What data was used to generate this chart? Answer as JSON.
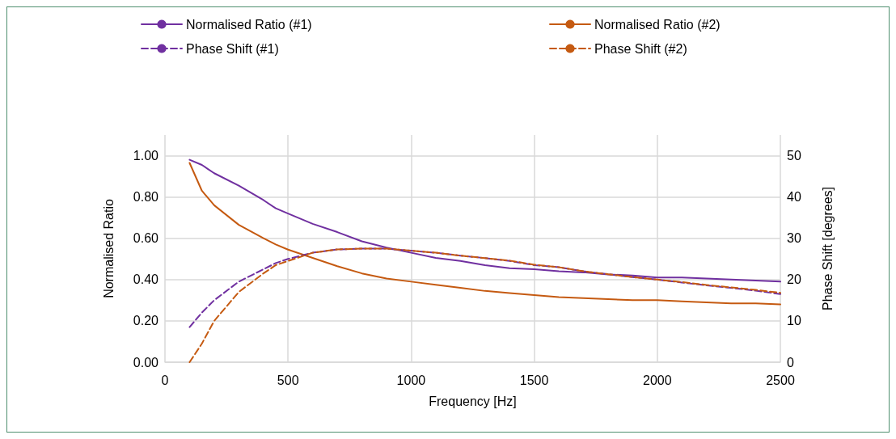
{
  "chart_data": {
    "type": "line",
    "xlabel": "Frequency [Hz]",
    "ylabel": "Normalised Ratio",
    "y2label": "Phase Shift [degrees]",
    "x": [
      100,
      150,
      200,
      300,
      400,
      450,
      500,
      600,
      700,
      800,
      900,
      1000,
      1100,
      1200,
      1300,
      1400,
      1500,
      1600,
      1700,
      1800,
      1900,
      2000,
      2100,
      2200,
      2300,
      2400,
      2500
    ],
    "series": [
      {
        "name": "Normalised Ratio (#1)",
        "color": "#7030a0",
        "line_style": "solid",
        "values": [
          0.98,
          0.955,
          0.915,
          0.855,
          0.785,
          0.745,
          0.72,
          0.67,
          0.63,
          0.585,
          0.555,
          0.53,
          0.505,
          0.49,
          0.47,
          0.455,
          0.45,
          0.44,
          0.435,
          0.425,
          0.42,
          0.41,
          0.41,
          0.405,
          0.4,
          0.395,
          0.39
        ]
      },
      {
        "name": "Normalised Ratio (#2)",
        "color": "#c55a11",
        "line_style": "solid",
        "values": [
          0.965,
          0.83,
          0.76,
          0.665,
          0.6,
          0.57,
          0.545,
          0.505,
          0.465,
          0.43,
          0.405,
          0.39,
          0.375,
          0.36,
          0.345,
          0.335,
          0.325,
          0.315,
          0.31,
          0.305,
          0.3,
          0.3,
          0.295,
          0.29,
          0.285,
          0.285,
          0.28
        ]
      },
      {
        "name": "Phase Shift (#1)",
        "color": "#7030a0",
        "line_style": "dashed",
        "axis": "y2",
        "values": [
          8.5,
          12,
          15,
          19.5,
          22.5,
          24,
          25,
          26.5,
          27.3,
          27.5,
          27.5,
          27,
          26.5,
          25.8,
          25.2,
          24.5,
          23.5,
          23,
          22,
          21.3,
          20.6,
          20,
          19.3,
          18.6,
          18,
          17.3,
          16.5
        ]
      },
      {
        "name": "Phase Shift (#2)",
        "color": "#c55a11",
        "line_style": "dashed",
        "axis": "y2",
        "values": [
          0,
          4.5,
          10,
          17,
          21.5,
          23.5,
          24.5,
          26.5,
          27.3,
          27.5,
          27.5,
          27,
          26.5,
          25.8,
          25.2,
          24.6,
          23.6,
          23,
          22,
          21.3,
          20.6,
          20,
          19.4,
          18.7,
          18.1,
          17.5,
          16.8
        ]
      }
    ],
    "xlim": [
      0,
      2500
    ],
    "xticks": [
      0,
      500,
      1000,
      1500,
      2000,
      2500
    ],
    "ylim": [
      0,
      1.1
    ],
    "yticks": [
      {
        "value": 0,
        "label": "0.00"
      },
      {
        "value": 0.2,
        "label": "0.20"
      },
      {
        "value": 0.4,
        "label": "0.40"
      },
      {
        "value": 0.6,
        "label": "0.60"
      },
      {
        "value": 0.8,
        "label": "0.80"
      },
      {
        "value": 1,
        "label": "1.00"
      }
    ],
    "y2lim": [
      0,
      55
    ],
    "y2ticks": [
      0,
      10,
      20,
      30,
      40,
      50
    ],
    "grid": true,
    "legend": "top",
    "marker": "none"
  }
}
